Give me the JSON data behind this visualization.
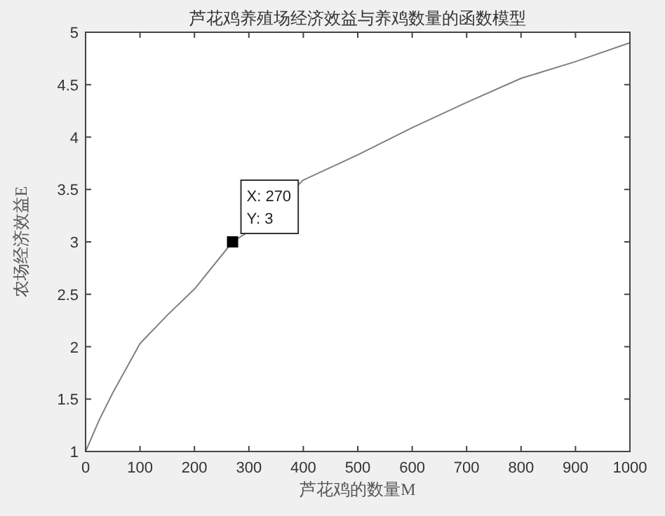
{
  "chart_data": {
    "type": "line",
    "title": "芦花鸡养殖场经济效益与养鸡数量的函数模型",
    "xlabel": "芦花鸡的数量M",
    "ylabel": "农场经济效益E",
    "x": [
      0,
      25,
      50,
      100,
      150,
      200,
      270,
      300,
      400,
      500,
      600,
      700,
      800,
      900,
      1000
    ],
    "series": [
      {
        "color": "#808080",
        "values": [
          1,
          1.3,
          1.56,
          2.03,
          2.3,
          2.55,
          3,
          3.1,
          3.59,
          3.83,
          4.09,
          4.33,
          4.56,
          4.72,
          4.9
        ]
      }
    ],
    "xlim": [
      0,
      1000
    ],
    "ylim": [
      1,
      5
    ],
    "xticks": [
      0,
      100,
      200,
      300,
      400,
      500,
      600,
      700,
      800,
      900,
      1000
    ],
    "yticks": [
      1,
      1.5,
      2,
      2.5,
      3,
      3.5,
      4,
      4.5,
      5
    ],
    "grid": false,
    "marker": "none",
    "line_style": "solid",
    "annotations": [
      {
        "text": "X: 270\nY: 3",
        "x": 270,
        "y": 3
      }
    ]
  }
}
